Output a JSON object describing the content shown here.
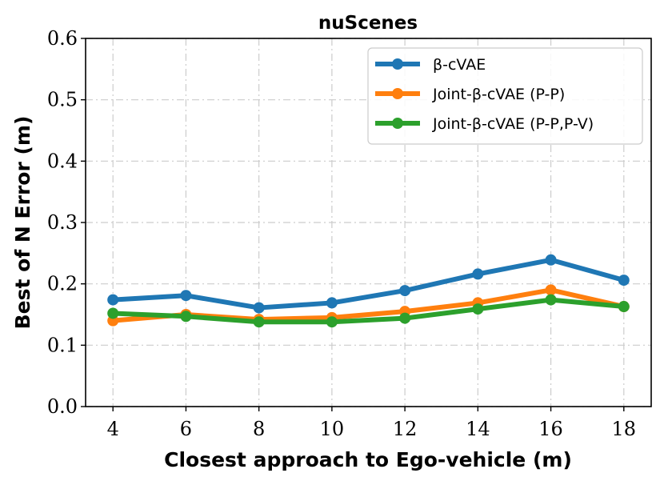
{
  "chart_data": {
    "type": "line",
    "title": "nuScenes",
    "xlabel": "Closest approach to Ego-vehicle (m)",
    "ylabel": "Best of N Error (m)",
    "x": [
      4,
      6,
      8,
      10,
      12,
      14,
      16,
      18
    ],
    "xlim": [
      3.25,
      18.75
    ],
    "ylim": [
      0.0,
      0.6
    ],
    "xticks": [
      "4",
      "6",
      "8",
      "10",
      "12",
      "14",
      "16",
      "18"
    ],
    "yticks": [
      "0.0",
      "0.1",
      "0.2",
      "0.3",
      "0.4",
      "0.5",
      "0.6"
    ],
    "grid": true,
    "legend_position": "top-right",
    "series": [
      {
        "name": "β-cVAE",
        "color": "#1f77b4",
        "values": [
          0.174,
          0.181,
          0.161,
          0.169,
          0.189,
          0.216,
          0.239,
          0.206
        ]
      },
      {
        "name": "Joint-β-cVAE (P-P)",
        "color": "#ff7f0e",
        "values": [
          0.14,
          0.15,
          0.142,
          0.145,
          0.155,
          0.169,
          0.19,
          0.163
        ]
      },
      {
        "name": "Joint-β-cVAE (P-P,P-V)",
        "color": "#2ca02c",
        "values": [
          0.152,
          0.147,
          0.138,
          0.138,
          0.144,
          0.159,
          0.174,
          0.163
        ]
      }
    ]
  }
}
